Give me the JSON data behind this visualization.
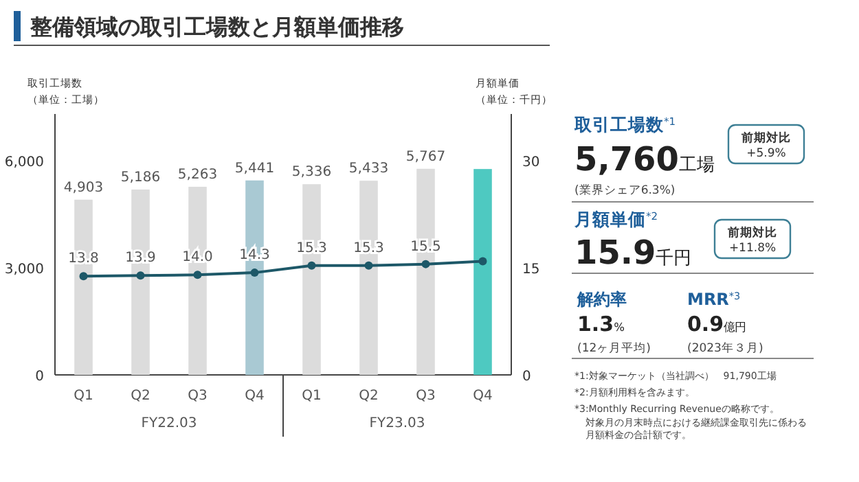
{
  "chart_data": [
    {
      "type": "bar",
      "title": "整備領域の取引工場数と月額単価推移",
      "ylabel": "取引工場数（単位：工場）",
      "y2label": "月額単価（単位：千円）",
      "categories": [
        "Q1",
        "Q2",
        "Q3",
        "Q4",
        "Q1",
        "Q2",
        "Q3",
        "Q4"
      ],
      "series": [
        {
          "type": "bar",
          "colors": [
            "#dcdcdc",
            "#dcdcdc",
            "#dcdcdc",
            "#a9c9d3",
            "#dcdcdc",
            "#dcdcdc",
            "#dcdcdc",
            "#4ec9c1"
          ],
          "values": [
            4903,
            5186,
            5263,
            5441,
            5336,
            5433,
            5767,
            5760
          ],
          "value_labels": [
            "4,903",
            "5,186",
            "5,263",
            "5,441",
            "5,336",
            "5,433",
            "5,767",
            null
          ]
        },
        {
          "type": "line",
          "axis": "y2",
          "color": "#1d5868",
          "values": [
            13.8,
            13.9,
            14.0,
            14.3,
            15.3,
            15.3,
            15.5,
            15.9
          ],
          "value_labels": [
            "13.8",
            "13.9",
            "14.0",
            "14.3",
            "15.3",
            "15.3",
            "15.5",
            null
          ]
        }
      ],
      "ylim": [
        0,
        7300
      ],
      "yticks": [
        0,
        {
          "value": 3000,
          "label": "3,000"
        },
        {
          "value": 6000,
          "label": "6,000"
        }
      ],
      "y2lim": [
        0,
        36.5
      ],
      "y2ticks": [
        0,
        15,
        30
      ],
      "marker": "circle",
      "grid": false,
      "annotations": [
        "FY22.03",
        "FY23.03"
      ]
    },
    {
      "type": "other",
      "annotations": [
        "取引工場数$^{*1}$",
        "5,760工場",
        "前期対比\n+5.9%",
        "(業界シェア6.3%)",
        "月額単価$^{*2}$",
        "15.9千円",
        "前期対比\n+11.8%",
        "解約率",
        "1.3%",
        "(12ヶ月平均)",
        "MRR$^{*3}$",
        "0.9億円",
        "(2023年３月)",
        "*1:対象マーケット（当社調べ）　91,790工場",
        "*2:月額利用料を含みます。",
        "*3:Monthly Recurring Revenueの略称です。",
        "対象月の月末時点における継続課金取引先に係わる月額料金の合計額です。"
      ]
    }
  ]
}
